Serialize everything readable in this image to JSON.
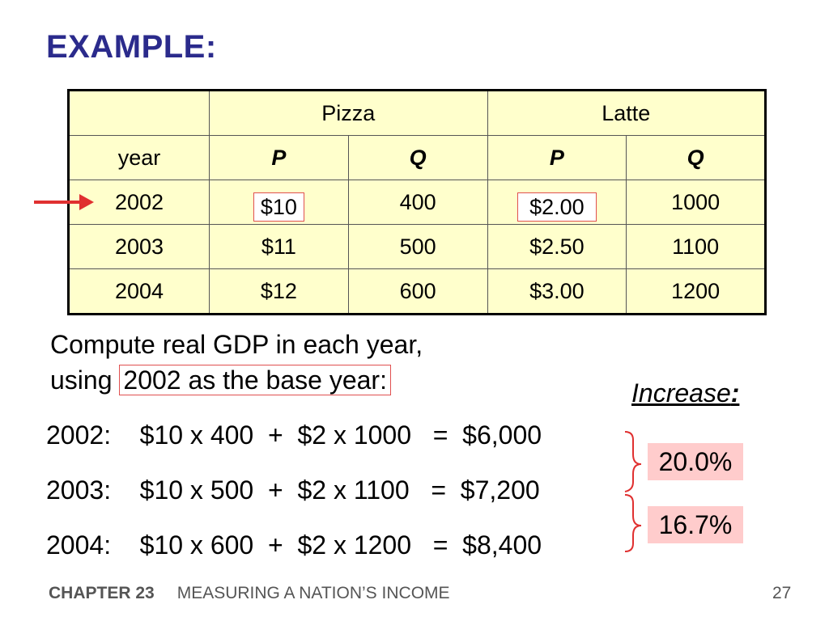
{
  "title": "EXAMPLE:",
  "table": {
    "header1": [
      "",
      "Pizza",
      "Latte"
    ],
    "header2": [
      "year",
      "P",
      "Q",
      "P",
      "Q"
    ],
    "rows": [
      [
        "2002",
        "$10",
        "400",
        "$2.00",
        "1000"
      ],
      [
        "2003",
        "$11",
        "500",
        "$2.50",
        "1100"
      ],
      [
        "2004",
        "$12",
        "600",
        "$3.00",
        "1200"
      ]
    ]
  },
  "paragraph": {
    "line1": "Compute real GDP in each year,",
    "line2_pre": "using ",
    "line2_box": "2002 as the base year:"
  },
  "increase_label": "Increase",
  "increase_colon": ":",
  "calc_lines": [
    "2002:    $10 x 400  +  $2 x 1000   =  $6,000",
    "2003:    $10 x 500  +  $2 x 1100   =  $7,200",
    "2004:    $10 x 600  +  $2 x 1200   =  $8,400"
  ],
  "increases": [
    "20.0%",
    "16.7%"
  ],
  "footer": {
    "chapter": "CHAPTER 23",
    "subject": "MEASURING A NATION’S INCOME",
    "page": "27"
  },
  "colors": {
    "title": "#2b2b8c",
    "table_bg": "#ffffcc",
    "highlight_border": "#e05050",
    "pct_bg": "#ffcccc"
  }
}
